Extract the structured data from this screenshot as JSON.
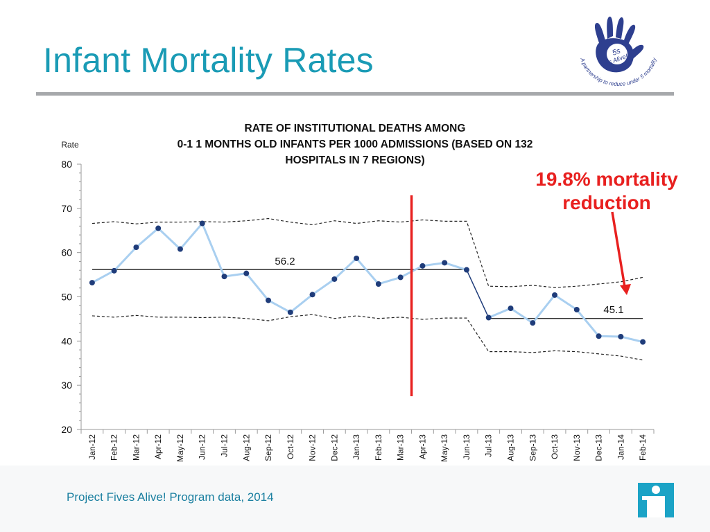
{
  "slide": {
    "title": "Infant Mortality Rates",
    "footer": "Project Fives Alive!  Program data, 2014"
  },
  "logo": {
    "text": "5s Alive!",
    "tagline": "A partnership to reduce under 5 mortality",
    "color": "#2e3f8f"
  },
  "annotation": {
    "line1": "19.8% mortality",
    "line2": "reduction",
    "color": "#e8201f"
  },
  "colors": {
    "title": "#1a9bb5",
    "series": "#a9cff0",
    "marker": "#1f3c7a",
    "intervention": "#e8201f"
  },
  "chart_data": {
    "type": "line",
    "title_lines": [
      "RATE OF INSTITUTIONAL DEATHS AMONG",
      "0-1 1 MONTHS OLD INFANTS PER 1000 ADMISSIONS (BASED ON 132",
      "HOSPITALS IN 7 REGIONS)"
    ],
    "ylabel": "Rate",
    "xlabel": "",
    "ylim": [
      20,
      80
    ],
    "yticks": [
      20,
      30,
      40,
      50,
      60,
      70,
      80
    ],
    "categories": [
      "Jan-12",
      "Feb-12",
      "Mar-12",
      "Apr-12",
      "May-12",
      "Jun-12",
      "Jul-12",
      "Aug-12",
      "Sep-12",
      "Oct-12",
      "Nov-12",
      "Dec-12",
      "Jan-13",
      "Feb-13",
      "Mar-13",
      "Apr-13",
      "May-13",
      "Jun-13",
      "Jul-13",
      "Aug-13",
      "Sep-13",
      "Oct-13",
      "Nov-13",
      "Dec-13",
      "Jan-14",
      "Feb-14"
    ],
    "series": [
      {
        "values": [
          53.2,
          55.9,
          61.2,
          65.5,
          60.8,
          66.6,
          54.6,
          55.3,
          49.2,
          46.5,
          50.5,
          54.0,
          58.7,
          52.9,
          54.4,
          57.0,
          57.7,
          56.1,
          45.3,
          47.4,
          44.1,
          50.4,
          47.1,
          41.1,
          41.0,
          39.8
        ]
      }
    ],
    "center_lines": [
      {
        "label": "56.2",
        "value": 56.2,
        "start": "Jan-12",
        "end": "Jun-13"
      },
      {
        "label": "45.1",
        "value": 45.1,
        "start": "Jul-13",
        "end": "Feb-14"
      }
    ],
    "upper_limit": [
      66.6,
      67.0,
      66.5,
      66.9,
      66.9,
      67.0,
      66.9,
      67.2,
      67.7,
      66.9,
      66.3,
      67.2,
      66.6,
      67.2,
      66.9,
      67.4,
      67.1,
      67.1,
      52.4,
      52.3,
      52.6,
      52.1,
      52.4,
      52.9,
      53.4,
      54.4
    ],
    "lower_limit": [
      45.7,
      45.4,
      45.8,
      45.4,
      45.4,
      45.3,
      45.4,
      45.1,
      44.6,
      45.5,
      46.0,
      45.1,
      45.7,
      45.1,
      45.4,
      44.9,
      45.2,
      45.2,
      37.6,
      37.6,
      37.4,
      37.8,
      37.6,
      37.1,
      36.6,
      35.7
    ],
    "intervention_after": "Mar-13",
    "grid": false,
    "legend": "none"
  }
}
